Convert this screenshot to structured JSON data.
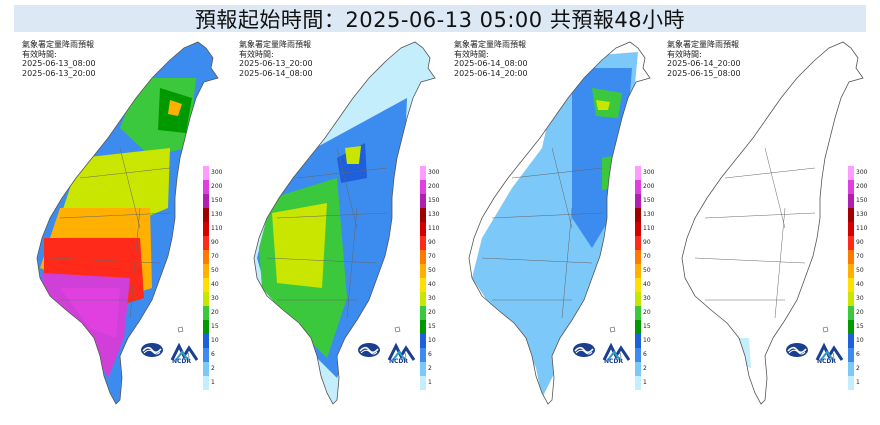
{
  "title": "預報起始時間：2025-06-13 05:00  共預報48小時",
  "panels": [
    {
      "agency": "氣象署定量降雨預報",
      "valid_label": "有效時間:",
      "start": "2025-06-13_08:00",
      "end": "2025-06-13_20:00",
      "intensity": "heavy"
    },
    {
      "agency": "氣象署定量降雨預報",
      "valid_label": "有效時間:",
      "start": "2025-06-13_20:00",
      "end": "2025-06-14_08:00",
      "intensity": "moderate"
    },
    {
      "agency": "氣象署定量降雨預報",
      "valid_label": "有效時間:",
      "start": "2025-06-14_08:00",
      "end": "2025-06-14_20:00",
      "intensity": "light"
    },
    {
      "agency": "氣象署定量降雨預報",
      "valid_label": "有效時間:",
      "start": "2025-06-14_20:00",
      "end": "2025-06-15_08:00",
      "intensity": "none"
    }
  ],
  "legend": {
    "labels": [
      "300",
      "200",
      "150",
      "130",
      "110",
      "90",
      "70",
      "50",
      "40",
      "30",
      "20",
      "15",
      "10",
      "6",
      "2",
      "1"
    ],
    "colors": [
      "#ff9cff",
      "#e040e0",
      "#b020b0",
      "#a00000",
      "#d40000",
      "#ff2a1a",
      "#ff7a00",
      "#ffb000",
      "#ffe000",
      "#c8e600",
      "#3cc83c",
      "#009a00",
      "#1e5fdc",
      "#3c8cf0",
      "#7cc8f8",
      "#c4eefc"
    ]
  },
  "logo_text": "NCDR"
}
